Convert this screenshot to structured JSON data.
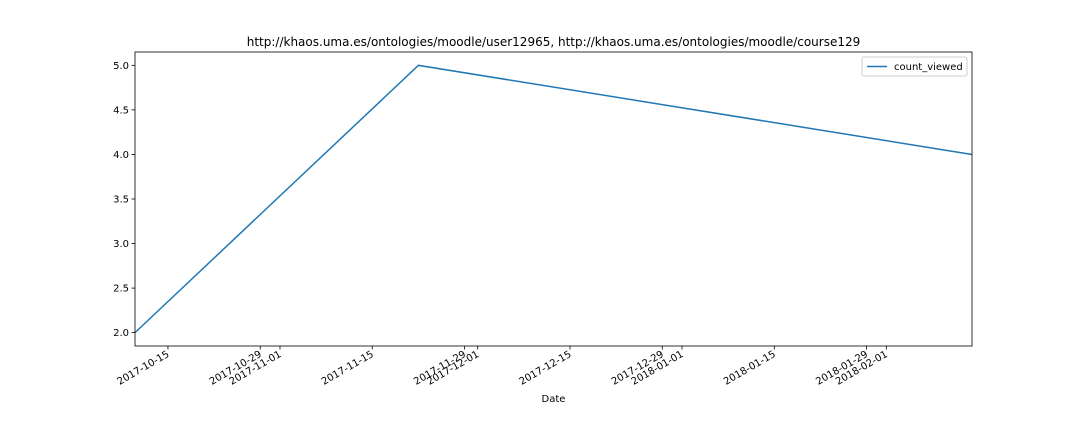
{
  "chart_data": {
    "type": "line",
    "title": "http://khaos.uma.es/ontologies/moodle/user12965, http://khaos.uma.es/ontologies/moodle/course129",
    "xlabel": "Date",
    "ylabel": "",
    "x_axis_type": "date",
    "xlim": [
      "2017-10-10",
      "2018-02-14"
    ],
    "ylim": [
      1.85,
      5.15
    ],
    "y_ticks": [
      2.0,
      2.5,
      3.0,
      3.5,
      4.0,
      4.5,
      5.0
    ],
    "y_tick_labels": [
      "2.0",
      "2.5",
      "3.0",
      "3.5",
      "4.0",
      "4.5",
      "5.0"
    ],
    "x_ticks": [
      {
        "date": "2017-10-15",
        "label": "2017-10-15"
      },
      {
        "date": "2017-10-29",
        "label": "2017-10-29"
      },
      {
        "date": "2017-11-01",
        "label": "2017-11-01"
      },
      {
        "date": "2017-11-15",
        "label": "2017-11-15"
      },
      {
        "date": "2017-11-29",
        "label": "2017-11-29"
      },
      {
        "date": "2017-12-01",
        "label": "2017-12-01"
      },
      {
        "date": "2017-12-15",
        "label": "2017-12-15"
      },
      {
        "date": "2017-12-29",
        "label": "2017-12-29"
      },
      {
        "date": "2018-01-01",
        "label": "2018-01-01"
      },
      {
        "date": "2018-01-15",
        "label": "2018-01-15"
      },
      {
        "date": "2018-01-29",
        "label": "2018-01-29"
      },
      {
        "date": "2018-02-01",
        "label": "2018-02-01"
      }
    ],
    "series": [
      {
        "name": "count_viewed",
        "color": "#1f77b4",
        "x": [
          "2017-10-10",
          "2017-11-22",
          "2018-02-14"
        ],
        "y": [
          2,
          5,
          4
        ]
      }
    ],
    "legend_position": "top-right",
    "grid": false
  }
}
